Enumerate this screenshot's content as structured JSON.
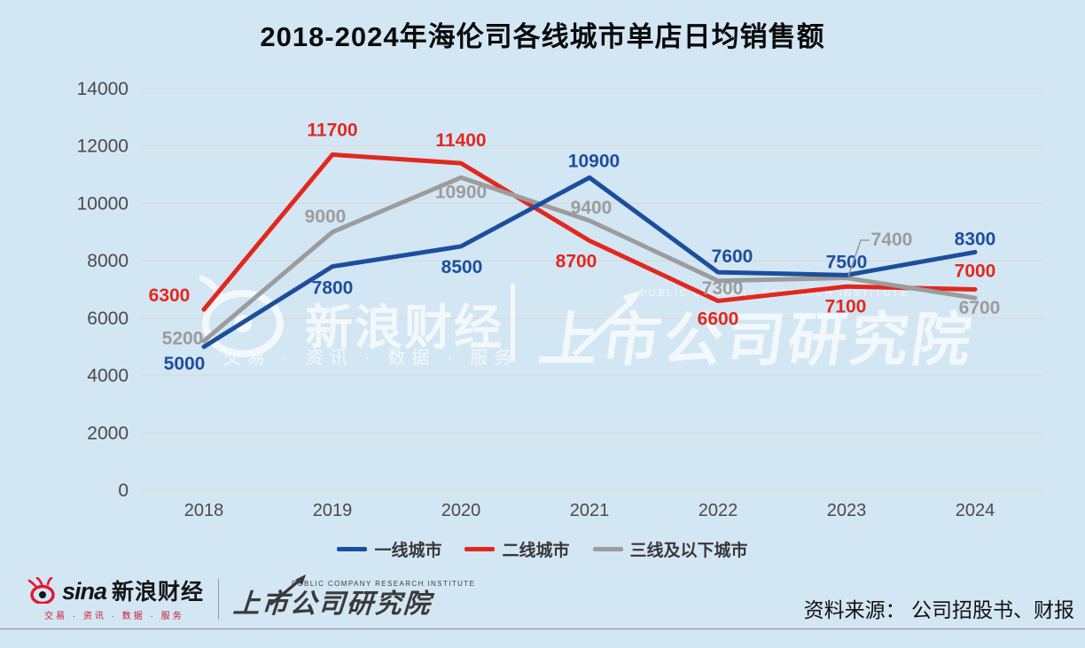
{
  "title": "2018-2024年海伦司各线城市单店日均销售额",
  "chart_data": {
    "type": "line",
    "categories": [
      "2018",
      "2019",
      "2020",
      "2021",
      "2022",
      "2023",
      "2024"
    ],
    "series": [
      {
        "name": "一线城市",
        "color": "#1d4e9d",
        "values": [
          5000,
          7800,
          8500,
          10900,
          7600,
          7500,
          8300
        ]
      },
      {
        "name": "二线城市",
        "color": "#e2281e",
        "values": [
          6300,
          11700,
          11400,
          8700,
          6600,
          7100,
          7000
        ]
      },
      {
        "name": "三线及以下城市",
        "color": "#9c9c9c",
        "values": [
          5200,
          9000,
          10900,
          9400,
          7300,
          7400,
          6700
        ]
      }
    ],
    "ylim": [
      0,
      14000
    ],
    "ytick_step": 2000,
    "yticks": [
      0,
      2000,
      4000,
      6000,
      8000,
      10000,
      12000,
      14000
    ],
    "grid": "horizontal",
    "legend_position": "bottom",
    "background_color": "#d3e6f4",
    "gridline_color": "#dbdbd3",
    "axis_text_color": "#4a4a4a"
  },
  "watermark": {
    "left_main": "新浪财经",
    "left_sub": "交易 · 资讯 · 数据 · 服务",
    "right_en": "PUBLIC COMPANY RESEARCH INSTITUTE",
    "right_main": "上市公司研究院"
  },
  "footer": {
    "sina_wordmark": "sina",
    "sina_brand": "新浪财经",
    "sina_tagline": "交易 · 资讯 · 数据 · 服务",
    "institute_en": "PUBLIC COMPANY RESEARCH INSTITUTE",
    "institute_name": "上市公司研究院",
    "source": "资料来源： 公司招股书、财报"
  }
}
